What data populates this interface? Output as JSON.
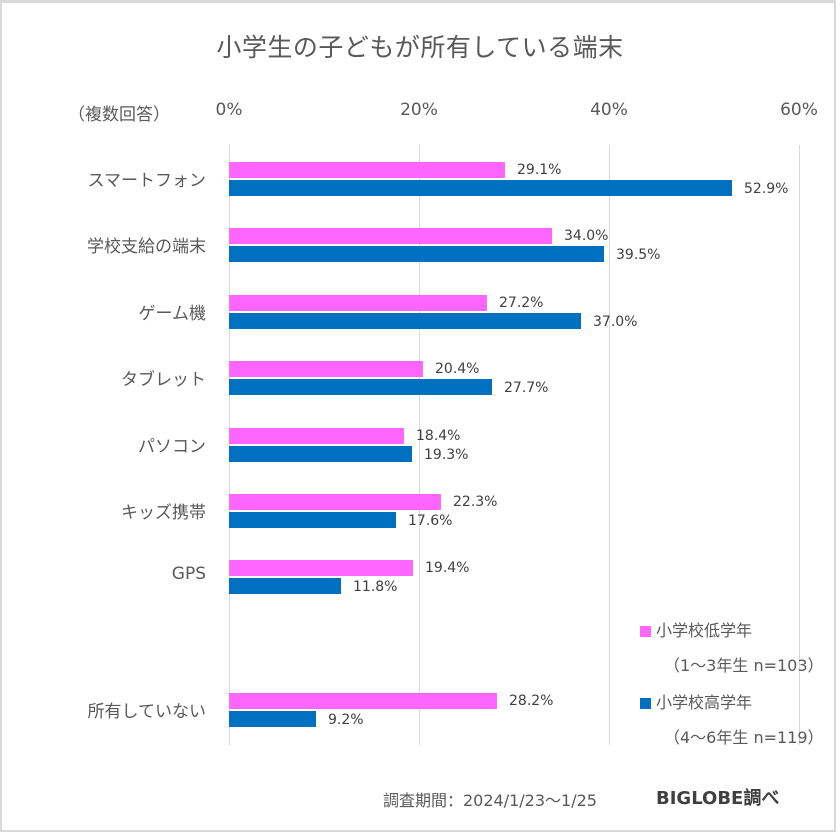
{
  "chart_data": {
    "type": "bar",
    "orientation": "horizontal",
    "title": "小学生の子どもが所有している端末",
    "note": "（複数回答）",
    "xlabel": "",
    "ylabel": "",
    "xlim": [
      0,
      60
    ],
    "x_ticks": [
      0,
      20,
      40,
      60
    ],
    "x_tick_labels": [
      "0%",
      "20%",
      "40%",
      "60%"
    ],
    "grid": true,
    "categories": [
      "スマートフォン",
      "学校支給の端末",
      "ゲーム機",
      "タブレット",
      "パソコン",
      "キッズ携帯",
      "GPS",
      "所有していない"
    ],
    "category_slots": [
      0,
      1,
      2,
      3,
      4,
      5,
      6,
      8
    ],
    "series": [
      {
        "name": "小学校低学年",
        "sub": "（1～3年生 n=103）",
        "color": "#ff66ff",
        "values": [
          29.1,
          34.0,
          27.2,
          20.4,
          18.4,
          22.3,
          19.4,
          28.2
        ],
        "labels": [
          "29.1%",
          "34.0%",
          "27.2%",
          "20.4%",
          "18.4%",
          "22.3%",
          "19.4%",
          "28.2%"
        ]
      },
      {
        "name": "小学校高学年",
        "sub": "（4～6年生 n=119）",
        "color": "#0070c0",
        "values": [
          52.9,
          39.5,
          37.0,
          27.7,
          19.3,
          17.6,
          11.8,
          9.2
        ],
        "labels": [
          "52.9%",
          "39.5%",
          "37.0%",
          "27.7%",
          "19.3%",
          "17.6%",
          "11.8%",
          "9.2%"
        ]
      }
    ],
    "legend_position": "bottom-right"
  },
  "footer": {
    "period": "調査期間：2024/1/23～1/25",
    "source": "BIGLOBE調べ"
  }
}
